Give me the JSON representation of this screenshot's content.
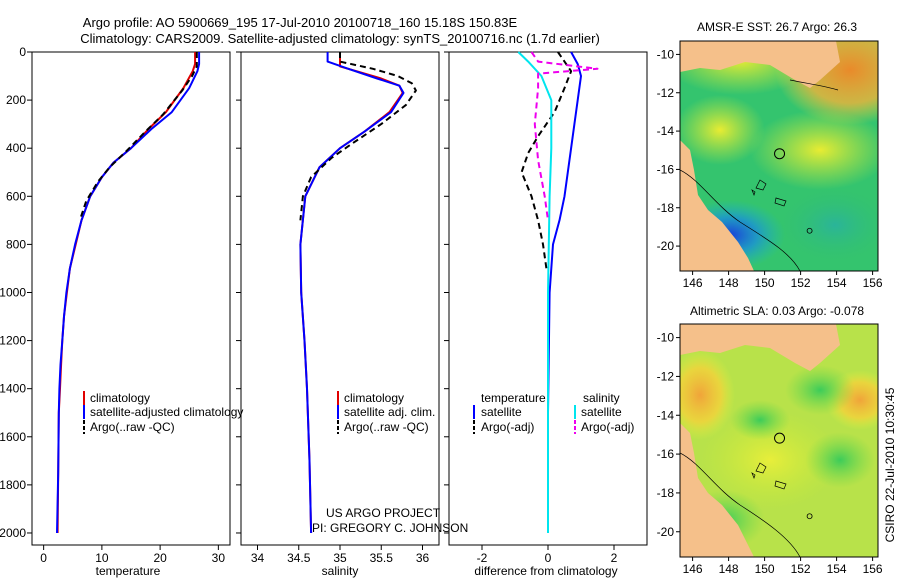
{
  "header": {
    "title_line1": "Argo profile: AO 5900669_195 17-Jul-2010 20100718_160 15.18S 150.83E",
    "title_line2": "Climatology: CARS2009. Satellite-adjusted climatology: synTS_20100716.nc (1.7d earlier)"
  },
  "colors": {
    "climatology": "#e00000",
    "satellite": "#0000ff",
    "argo": "#000000",
    "salinity_satellite": "#00e5ee",
    "salinity_argo": "#ee00ee",
    "land": "#f5c08a"
  },
  "chart_data": [
    {
      "type": "line",
      "title": "",
      "xlabel": "temperature",
      "ylabel": "",
      "xlim": [
        -2,
        32
      ],
      "ylim": [
        2050,
        0
      ],
      "xticks": [
        0,
        10,
        20,
        30
      ],
      "yticks": [
        0,
        200,
        400,
        600,
        800,
        1000,
        1200,
        1400,
        1600,
        1800,
        2000
      ],
      "legend": [
        "climatology",
        "satellite-adjusted climatology",
        "Argo(..raw -QC)"
      ],
      "series": [
        {
          "name": "climatology",
          "color": "#e00000",
          "dash": "",
          "x": [
            26,
            26,
            25.6,
            24,
            21,
            18,
            15,
            12,
            10,
            8,
            6.5,
            5.5,
            4.5,
            4,
            3.5,
            3.2,
            3,
            2.8,
            2.6,
            2.5,
            2.4
          ],
          "y": [
            0,
            50,
            80,
            150,
            250,
            320,
            400,
            460,
            520,
            600,
            700,
            800,
            900,
            1000,
            1100,
            1200,
            1300,
            1400,
            1500,
            1750,
            2000
          ]
        },
        {
          "name": "satellite-adjusted climatology",
          "color": "#0000ff",
          "dash": "",
          "x": [
            26.7,
            26.7,
            26.4,
            25,
            22,
            18.5,
            15,
            12,
            10,
            8,
            6.5,
            5.4,
            4.5,
            3.9,
            3.5,
            3.2,
            2.9,
            2.7,
            2.6,
            2.5,
            2.3
          ],
          "y": [
            0,
            50,
            80,
            150,
            250,
            320,
            400,
            460,
            520,
            600,
            700,
            800,
            900,
            1000,
            1100,
            1200,
            1300,
            1400,
            1500,
            1750,
            2000
          ]
        },
        {
          "name": "Argo(..raw -QC)",
          "color": "#000000",
          "dash": "6,4",
          "x": [
            26.3,
            26.3,
            25.5,
            23.8,
            20.5,
            17.5,
            14.3,
            11.3,
            9.3,
            7.3,
            6.2
          ],
          "y": [
            0,
            60,
            100,
            160,
            260,
            330,
            410,
            480,
            540,
            620,
            700
          ]
        }
      ]
    },
    {
      "type": "line",
      "title": "",
      "xlabel": "salinity",
      "ylabel": "",
      "xlim": [
        33.8,
        36.2
      ],
      "ylim": [
        2050,
        0
      ],
      "xticks": [
        34,
        34.5,
        35,
        35.5,
        36
      ],
      "legend": [
        "climatology",
        "satellite adj. clim.",
        "Argo(..raw -QC)"
      ],
      "series": [
        {
          "name": "climatology",
          "color": "#e00000",
          "dash": "",
          "x": [
            35,
            35,
            35.2,
            35.5,
            35.72,
            35.76,
            35.6,
            35.3,
            35,
            34.75,
            34.58,
            34.52,
            34.53,
            34.57,
            34.6,
            34.63,
            34.65
          ],
          "y": [
            0,
            60,
            80,
            110,
            140,
            170,
            250,
            330,
            400,
            480,
            600,
            800,
            1000,
            1200,
            1400,
            1700,
            2000
          ]
        },
        {
          "name": "satellite adj. clim.",
          "color": "#0000ff",
          "dash": "",
          "x": [
            34.85,
            34.85,
            35.1,
            35.45,
            35.72,
            35.77,
            35.62,
            35.3,
            35,
            34.75,
            34.58,
            34.52,
            34.53,
            34.57,
            34.6,
            34.63,
            34.65
          ],
          "y": [
            0,
            40,
            70,
            110,
            140,
            170,
            250,
            330,
            400,
            480,
            600,
            800,
            1000,
            1200,
            1400,
            1700,
            2000
          ]
        },
        {
          "name": "Argo(..raw -QC)",
          "color": "#000000",
          "dash": "6,4",
          "x": [
            35,
            35,
            35.4,
            35.7,
            35.87,
            35.92,
            35.8,
            35.5,
            35.15,
            34.9,
            34.65,
            34.55,
            34.52
          ],
          "y": [
            0,
            40,
            70,
            100,
            130,
            160,
            220,
            300,
            380,
            440,
            520,
            600,
            700
          ]
        }
      ],
      "annotation": [
        "US ARGO PROJECT",
        "PI: GREGORY C. JOHNSON"
      ]
    },
    {
      "type": "line",
      "title": "",
      "xlabel": "difference from climatology",
      "ylabel": "",
      "xlim": [
        -3,
        3
      ],
      "ylim": [
        2050,
        0
      ],
      "xticks": [
        -2,
        0,
        2
      ],
      "legend": {
        "temperature_header": "temperature",
        "salinity_header": "salinity",
        "temperature": [
          "satellite",
          "Argo(-adj)"
        ],
        "salinity": [
          "satellite",
          "Argo(-adj)"
        ]
      },
      "series": [
        {
          "name": "temperature satellite",
          "color": "#0000ff",
          "dash": "",
          "x": [
            0.7,
            0.9,
            1,
            0.9,
            0.8,
            0.7,
            0.6,
            0.5,
            0.35,
            0.15,
            0.05,
            0,
            0
          ],
          "y": [
            0,
            50,
            100,
            200,
            300,
            400,
            500,
            600,
            700,
            800,
            1000,
            1500,
            2000
          ]
        },
        {
          "name": "temperature Argo(-adj)",
          "color": "#000000",
          "dash": "6,4",
          "x": [
            0.3,
            0.7,
            0.5,
            0.2,
            -0.3,
            -0.6,
            -0.8,
            -0.5,
            -0.3,
            -0.15,
            -0.05
          ],
          "y": [
            0,
            80,
            150,
            250,
            350,
            420,
            500,
            600,
            700,
            800,
            900
          ]
        },
        {
          "name": "salinity satellite",
          "color": "#00e5ee",
          "dash": "",
          "x": [
            -0.9,
            -0.6,
            -0.2,
            0.1,
            0.1,
            0.05,
            0,
            0
          ],
          "y": [
            0,
            40,
            100,
            200,
            400,
            600,
            1000,
            2000
          ]
        },
        {
          "name": "salinity Argo(-adj)",
          "color": "#ee00ee",
          "dash": "6,4",
          "x": [
            -0.5,
            -0.3,
            1.5,
            -0.3,
            -0.3,
            -0.4,
            -0.3,
            -0.1,
            0
          ],
          "y": [
            0,
            40,
            70,
            90,
            150,
            300,
            450,
            600,
            700
          ]
        }
      ]
    }
  ],
  "maps": [
    {
      "title": "AMSR-E SST: 26.7  Argo: 26.3",
      "xticks": [
        146,
        148,
        150,
        152,
        154,
        156
      ],
      "yticks": [
        -10,
        -12,
        -14,
        -16,
        -18,
        -20
      ],
      "xlim": [
        145.3,
        156.3
      ],
      "ylim": [
        -21.3,
        -9.3
      ],
      "argo_lon": 150.83,
      "argo_lat": -15.18,
      "reef_lon": 152.5,
      "reef_lat": -19.2
    },
    {
      "title": "Altimetric SLA: 0.03  Argo: -0.078",
      "xticks": [
        146,
        148,
        150,
        152,
        154,
        156
      ],
      "yticks": [
        -10,
        -12,
        -14,
        -16,
        -18,
        -20
      ],
      "xlim": [
        145.3,
        156.3
      ],
      "ylim": [
        -21.3,
        -9.3
      ],
      "argo_lon": 150.83,
      "argo_lat": -15.18,
      "reef_lon": 152.5,
      "reef_lat": -19.2
    }
  ],
  "footer": {
    "stamp": "CSIRO 22-Jul-2010 10:30:45"
  }
}
